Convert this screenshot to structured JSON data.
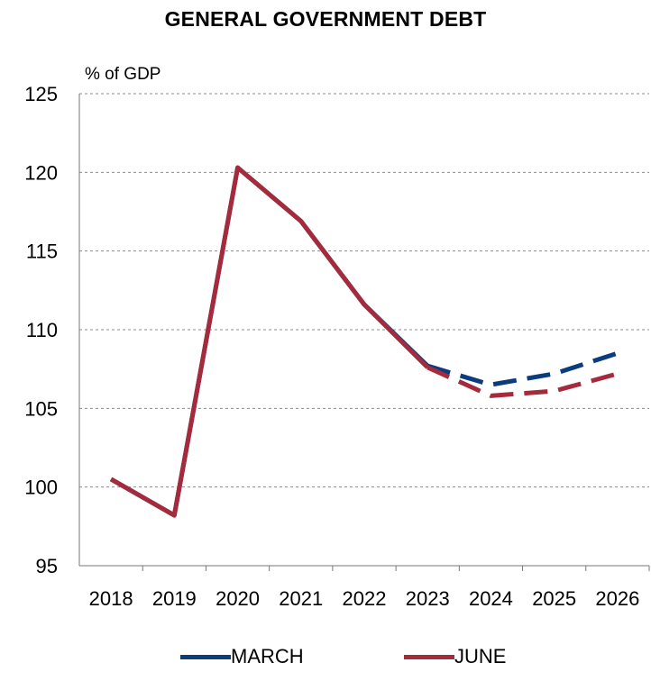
{
  "chart_data": {
    "type": "line",
    "title": "GENERAL GOVERNMENT DEBT",
    "ylabel": "% of GDP",
    "xlabel": "",
    "categories": [
      "2018",
      "2019",
      "2020",
      "2021",
      "2022",
      "2023",
      "2024",
      "2025",
      "2026"
    ],
    "ylim": [
      95,
      125
    ],
    "yticks": [
      95,
      100,
      105,
      110,
      115,
      120,
      125
    ],
    "grid": "horizontal dashed",
    "legend_position": "bottom",
    "series": [
      {
        "name": "MARCH",
        "color": "#0b3c7d",
        "values": [
          100.5,
          98.2,
          120.3,
          116.9,
          111.6,
          107.7,
          106.5,
          107.2,
          108.5
        ],
        "dashed_from": "2023"
      },
      {
        "name": "JUNE",
        "color": "#a52a3c",
        "values": [
          100.5,
          98.2,
          120.3,
          116.9,
          111.6,
          107.6,
          105.8,
          106.1,
          107.2
        ],
        "dashed_from": "2023"
      }
    ]
  }
}
